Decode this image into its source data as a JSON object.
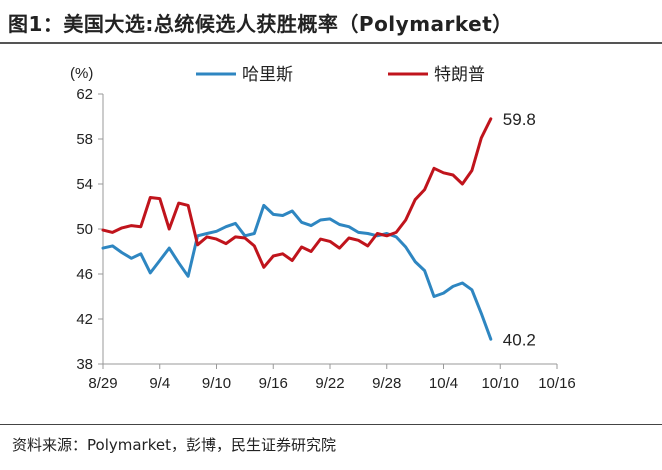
{
  "header": {
    "title": "图1：美国大选:总统候选人获胜概率（Polymarket）"
  },
  "footer": {
    "source": "资料来源：Polymarket，彭博，民生证券研究院"
  },
  "chart_data": {
    "type": "line",
    "title": "图1：美国大选:总统候选人获胜概率（Polymarket）",
    "ylabel": "(%)",
    "xlabel": "",
    "ylim": [
      38,
      62
    ],
    "yticks": [
      "38",
      "42",
      "46",
      "50",
      "54",
      "58",
      "62"
    ],
    "xticks": [
      "8/29",
      "9/4",
      "9/10",
      "9/16",
      "9/22",
      "9/28",
      "10/4",
      "10/10",
      "10/16"
    ],
    "legend_position": "top",
    "grid": false,
    "series": [
      {
        "name": "哈里斯",
        "color": "#2e86c1",
        "end_label": "40.2",
        "points": [
          [
            "8/29",
            48.3
          ],
          [
            "8/30",
            48.5
          ],
          [
            "8/31",
            47.9
          ],
          [
            "9/1",
            47.4
          ],
          [
            "9/2",
            47.8
          ],
          [
            "9/3",
            46.1
          ],
          [
            "9/4",
            47.2
          ],
          [
            "9/5",
            48.3
          ],
          [
            "9/6",
            47.0
          ],
          [
            "9/7",
            45.8
          ],
          [
            "9/8",
            49.4
          ],
          [
            "9/9",
            49.6
          ],
          [
            "9/10",
            49.8
          ],
          [
            "9/11",
            50.2
          ],
          [
            "9/12",
            50.5
          ],
          [
            "9/13",
            49.4
          ],
          [
            "9/14",
            49.6
          ],
          [
            "9/15",
            52.1
          ],
          [
            "9/16",
            51.3
          ],
          [
            "9/17",
            51.2
          ],
          [
            "9/18",
            51.6
          ],
          [
            "9/19",
            50.6
          ],
          [
            "9/20",
            50.3
          ],
          [
            "9/21",
            50.8
          ],
          [
            "9/22",
            50.9
          ],
          [
            "9/23",
            50.4
          ],
          [
            "9/24",
            50.2
          ],
          [
            "9/25",
            49.7
          ],
          [
            "9/26",
            49.6
          ],
          [
            "9/27",
            49.4
          ],
          [
            "9/28",
            49.6
          ],
          [
            "9/29",
            49.3
          ],
          [
            "9/30",
            48.4
          ],
          [
            "10/1",
            47.1
          ],
          [
            "10/2",
            46.3
          ],
          [
            "10/3",
            44.0
          ],
          [
            "10/4",
            44.3
          ],
          [
            "10/5",
            44.9
          ],
          [
            "10/6",
            45.2
          ],
          [
            "10/7",
            44.6
          ],
          [
            "10/8",
            42.5
          ],
          [
            "10/9",
            40.2
          ]
        ]
      },
      {
        "name": "特朗普",
        "color": "#c0141c",
        "end_label": "59.8",
        "points": [
          [
            "8/29",
            49.9
          ],
          [
            "8/30",
            49.7
          ],
          [
            "8/31",
            50.1
          ],
          [
            "9/1",
            50.3
          ],
          [
            "9/2",
            50.2
          ],
          [
            "9/3",
            52.8
          ],
          [
            "9/4",
            52.7
          ],
          [
            "9/5",
            50.0
          ],
          [
            "9/6",
            52.3
          ],
          [
            "9/7",
            52.1
          ],
          [
            "9/8",
            48.6
          ],
          [
            "9/9",
            49.3
          ],
          [
            "9/10",
            49.1
          ],
          [
            "9/11",
            48.7
          ],
          [
            "9/12",
            49.3
          ],
          [
            "9/13",
            49.2
          ],
          [
            "9/14",
            48.5
          ],
          [
            "9/15",
            46.6
          ],
          [
            "9/16",
            47.6
          ],
          [
            "9/17",
            47.8
          ],
          [
            "9/18",
            47.2
          ],
          [
            "9/19",
            48.4
          ],
          [
            "9/20",
            48.0
          ],
          [
            "9/21",
            49.1
          ],
          [
            "9/22",
            48.9
          ],
          [
            "9/23",
            48.3
          ],
          [
            "9/24",
            49.2
          ],
          [
            "9/25",
            49.0
          ],
          [
            "9/26",
            48.5
          ],
          [
            "9/27",
            49.6
          ],
          [
            "9/28",
            49.4
          ],
          [
            "9/29",
            49.7
          ],
          [
            "9/30",
            50.8
          ],
          [
            "10/1",
            52.6
          ],
          [
            "10/2",
            53.5
          ],
          [
            "10/3",
            55.4
          ],
          [
            "10/4",
            55.0
          ],
          [
            "10/5",
            54.8
          ],
          [
            "10/6",
            54.0
          ],
          [
            "10/7",
            55.2
          ],
          [
            "10/8",
            58.1
          ],
          [
            "10/9",
            59.8
          ]
        ]
      }
    ]
  }
}
